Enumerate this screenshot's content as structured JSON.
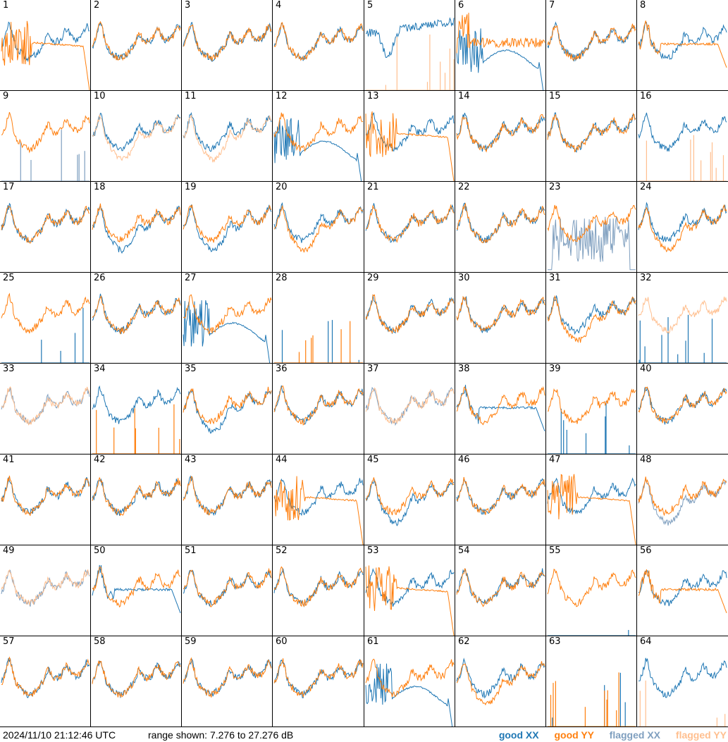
{
  "footer": {
    "timestamp": "2024/11/10 21:12:46 UTC",
    "range_text": "range shown: 7.276 to 27.276 dB"
  },
  "legend": [
    {
      "label": "good XX",
      "color": "#1f77b4"
    },
    {
      "label": "good YY",
      "color": "#ff7f0e"
    },
    {
      "label": "flagged XX",
      "color": "#7f9fbf"
    },
    {
      "label": "flagged YY",
      "color": "#ffbf8f"
    }
  ],
  "chart_data": {
    "type": "line",
    "grid": {
      "rows": 8,
      "cols": 8
    },
    "y_range_db": [
      7.276,
      27.276
    ],
    "series_names": [
      "good XX",
      "good YY",
      "flagged XX",
      "flagged YY"
    ],
    "antennas": [
      {
        "id": "1",
        "xx": "good",
        "yy": "good",
        "xx_shape": "normal",
        "yy_shape": "noisy_drop"
      },
      {
        "id": "2",
        "xx": "good",
        "yy": "good",
        "xx_shape": "normal",
        "yy_shape": "normal"
      },
      {
        "id": "3",
        "xx": "good",
        "yy": "good",
        "xx_shape": "normal",
        "yy_shape": "normal"
      },
      {
        "id": "4",
        "xx": "good",
        "yy": "good",
        "xx_shape": "normal",
        "yy_shape": "normal"
      },
      {
        "id": "5",
        "xx": "good",
        "yy": "flagged",
        "xx_shape": "dip",
        "yy_shape": "spikes"
      },
      {
        "id": "6",
        "xx": "good",
        "yy": "good",
        "xx_shape": "wave_drop",
        "yy_shape": "noisy_flat"
      },
      {
        "id": "7",
        "xx": "good",
        "yy": "good",
        "xx_shape": "normal",
        "yy_shape": "normal"
      },
      {
        "id": "8",
        "xx": "good",
        "yy": "good",
        "xx_shape": "normal",
        "yy_shape": "flat_drop"
      },
      {
        "id": "9",
        "xx": "flagged",
        "yy": "good",
        "xx_shape": "spikes",
        "yy_shape": "normal"
      },
      {
        "id": "10",
        "xx": "good",
        "yy": "flagged",
        "xx_shape": "normal",
        "yy_shape": "deep"
      },
      {
        "id": "11",
        "xx": "good",
        "yy": "flagged",
        "xx_shape": "normal",
        "yy_shape": "deep"
      },
      {
        "id": "12",
        "xx": "good",
        "yy": "good",
        "xx_shape": "wave_drop",
        "yy_shape": "normal"
      },
      {
        "id": "13",
        "xx": "good",
        "yy": "good",
        "xx_shape": "normal",
        "yy_shape": "noisy_drop"
      },
      {
        "id": "14",
        "xx": "good",
        "yy": "good",
        "xx_shape": "normal",
        "yy_shape": "normal"
      },
      {
        "id": "15",
        "xx": "good",
        "yy": "good",
        "xx_shape": "normal",
        "yy_shape": "normal"
      },
      {
        "id": "16",
        "xx": "good",
        "yy": "flagged",
        "xx_shape": "normal",
        "yy_shape": "spikes"
      },
      {
        "id": "17",
        "xx": "good",
        "yy": "good",
        "xx_shape": "normal",
        "yy_shape": "normal"
      },
      {
        "id": "18",
        "xx": "good",
        "yy": "good",
        "xx_shape": "deep",
        "yy_shape": "normal"
      },
      {
        "id": "19",
        "xx": "good",
        "yy": "good",
        "xx_shape": "deep",
        "yy_shape": "normal"
      },
      {
        "id": "20",
        "xx": "good",
        "yy": "good",
        "xx_shape": "normal",
        "yy_shape": "deep"
      },
      {
        "id": "21",
        "xx": "good",
        "yy": "good",
        "xx_shape": "normal",
        "yy_shape": "normal"
      },
      {
        "id": "22",
        "xx": "good",
        "yy": "good",
        "xx_shape": "normal",
        "yy_shape": "normal"
      },
      {
        "id": "23",
        "xx": "flagged",
        "yy": "good",
        "xx_shape": "noisy_block",
        "yy_shape": "normal"
      },
      {
        "id": "24",
        "xx": "good",
        "yy": "good",
        "xx_shape": "normal",
        "yy_shape": "deep"
      },
      {
        "id": "25",
        "xx": "good",
        "yy": "good",
        "xx_shape": "spikes",
        "yy_shape": "normal"
      },
      {
        "id": "26",
        "xx": "good",
        "yy": "good",
        "xx_shape": "normal",
        "yy_shape": "normal"
      },
      {
        "id": "27",
        "xx": "good",
        "yy": "good",
        "xx_shape": "wave_drop",
        "yy_shape": "normal"
      },
      {
        "id": "28",
        "xx": "good",
        "yy": "good",
        "xx_shape": "spikes",
        "yy_shape": "spikes"
      },
      {
        "id": "29",
        "xx": "good",
        "yy": "good",
        "xx_shape": "normal",
        "yy_shape": "normal"
      },
      {
        "id": "30",
        "xx": "good",
        "yy": "good",
        "xx_shape": "normal",
        "yy_shape": "normal"
      },
      {
        "id": "31",
        "xx": "good",
        "yy": "good",
        "xx_shape": "normal",
        "yy_shape": "deep"
      },
      {
        "id": "32",
        "xx": "good",
        "yy": "flagged",
        "xx_shape": "spikes",
        "yy_shape": "normal"
      },
      {
        "id": "33",
        "xx": "flagged",
        "yy": "flagged",
        "xx_shape": "normal",
        "yy_shape": "normal"
      },
      {
        "id": "34",
        "xx": "good",
        "yy": "good",
        "xx_shape": "normal",
        "yy_shape": "spikes"
      },
      {
        "id": "35",
        "xx": "good",
        "yy": "good",
        "xx_shape": "deep",
        "yy_shape": "normal"
      },
      {
        "id": "36",
        "xx": "good",
        "yy": "good",
        "xx_shape": "normal",
        "yy_shape": "normal"
      },
      {
        "id": "37",
        "xx": "flagged",
        "yy": "flagged",
        "xx_shape": "normal",
        "yy_shape": "normal"
      },
      {
        "id": "38",
        "xx": "good",
        "yy": "good",
        "xx_shape": "flat_drop",
        "yy_shape": "normal"
      },
      {
        "id": "39",
        "xx": "good",
        "yy": "good",
        "xx_shape": "spikes",
        "yy_shape": "normal"
      },
      {
        "id": "40",
        "xx": "good",
        "yy": "good",
        "xx_shape": "normal",
        "yy_shape": "normal"
      },
      {
        "id": "41",
        "xx": "good",
        "yy": "good",
        "xx_shape": "normal",
        "yy_shape": "normal"
      },
      {
        "id": "42",
        "xx": "good",
        "yy": "good",
        "xx_shape": "normal",
        "yy_shape": "normal"
      },
      {
        "id": "43",
        "xx": "good",
        "yy": "good",
        "xx_shape": "normal",
        "yy_shape": "normal"
      },
      {
        "id": "44",
        "xx": "good",
        "yy": "good",
        "xx_shape": "normal",
        "yy_shape": "noisy_drop"
      },
      {
        "id": "45",
        "xx": "good",
        "yy": "good",
        "xx_shape": "deep",
        "yy_shape": "normal"
      },
      {
        "id": "46",
        "xx": "good",
        "yy": "good",
        "xx_shape": "normal",
        "yy_shape": "normal"
      },
      {
        "id": "47",
        "xx": "good",
        "yy": "good",
        "xx_shape": "normal",
        "yy_shape": "noisy_drop"
      },
      {
        "id": "48",
        "xx": "flagged",
        "yy": "good",
        "xx_shape": "deep",
        "yy_shape": "normal"
      },
      {
        "id": "49",
        "xx": "flagged",
        "yy": "flagged",
        "xx_shape": "normal",
        "yy_shape": "normal"
      },
      {
        "id": "50",
        "xx": "good",
        "yy": "good",
        "xx_shape": "flat_drop",
        "yy_shape": "normal"
      },
      {
        "id": "51",
        "xx": "good",
        "yy": "good",
        "xx_shape": "normal",
        "yy_shape": "normal"
      },
      {
        "id": "52",
        "xx": "good",
        "yy": "good",
        "xx_shape": "normal",
        "yy_shape": "normal"
      },
      {
        "id": "53",
        "xx": "good",
        "yy": "good",
        "xx_shape": "normal",
        "yy_shape": "noisy_drop"
      },
      {
        "id": "54",
        "xx": "good",
        "yy": "good",
        "xx_shape": "normal",
        "yy_shape": "normal"
      },
      {
        "id": "55",
        "xx": "good",
        "yy": "good",
        "xx_shape": "spikes",
        "yy_shape": "normal"
      },
      {
        "id": "56",
        "xx": "good",
        "yy": "good",
        "xx_shape": "normal",
        "yy_shape": "flat_drop"
      },
      {
        "id": "57",
        "xx": "good",
        "yy": "good",
        "xx_shape": "normal",
        "yy_shape": "normal"
      },
      {
        "id": "58",
        "xx": "good",
        "yy": "good",
        "xx_shape": "normal",
        "yy_shape": "normal"
      },
      {
        "id": "59",
        "xx": "good",
        "yy": "good",
        "xx_shape": "normal",
        "yy_shape": "normal"
      },
      {
        "id": "60",
        "xx": "good",
        "yy": "good",
        "xx_shape": "normal",
        "yy_shape": "normal"
      },
      {
        "id": "61",
        "xx": "good",
        "yy": "good",
        "xx_shape": "wave_drop",
        "yy_shape": "normal"
      },
      {
        "id": "62",
        "xx": "good",
        "yy": "good",
        "xx_shape": "normal",
        "yy_shape": "deep"
      },
      {
        "id": "63",
        "xx": "good",
        "yy": "good",
        "xx_shape": "spikes",
        "yy_shape": "spikes"
      },
      {
        "id": "64",
        "xx": "good",
        "yy": "flagged",
        "xx_shape": "normal",
        "yy_shape": "spikes"
      }
    ]
  }
}
